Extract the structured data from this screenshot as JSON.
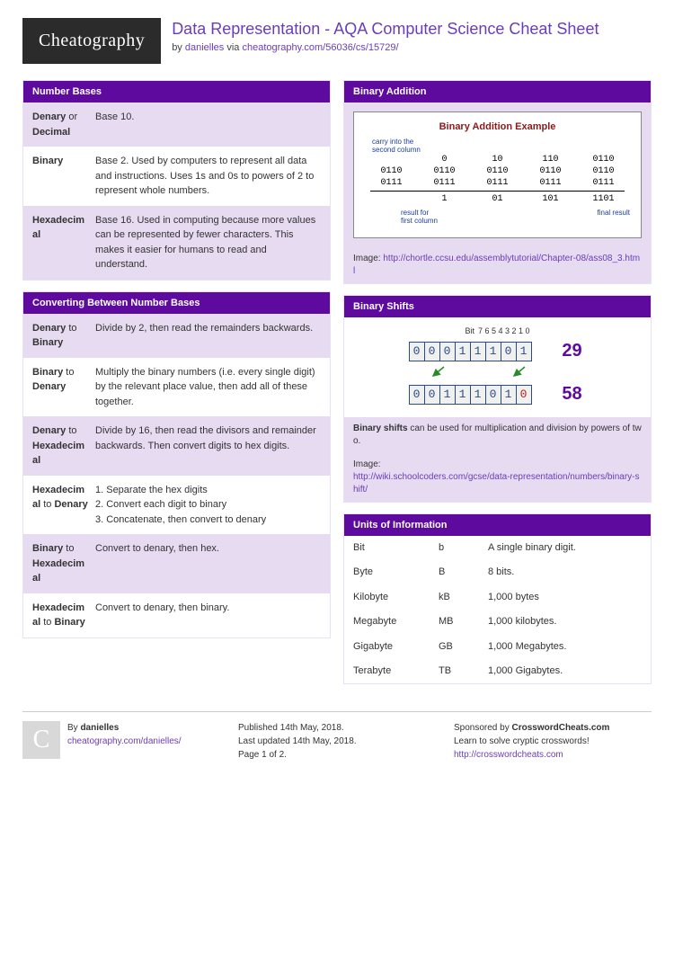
{
  "colors": {
    "header_bg": "#5e0a9e",
    "alt_bg": "#e7dbf2",
    "link": "#6a3db8",
    "logo_bg": "#2b2b2b"
  },
  "header": {
    "logo_text": "Cheatography",
    "title": "Data Representation - AQA Computer Science Cheat Sheet",
    "by": "by ",
    "author": "danielles",
    "via": " via ",
    "source_url": "cheatography.com/56036/cs/15729/"
  },
  "left": {
    "number_bases": {
      "title": "Number Bases",
      "rows": [
        {
          "term": "<b>Denary</b> or <b>Decimal</b>",
          "def": "Base 10."
        },
        {
          "term": "<b>Binary</b>",
          "def": "Base 2. Used by computers to represent all data and instructions. Uses 1s and 0s to powers of 2 to represent whole numbers."
        },
        {
          "term": "<b>Hexadecimal</b>",
          "def": "Base 16. Used in computing because more values can be represented by fewer characters. This makes it easier for humans to read and understand."
        }
      ]
    },
    "converting": {
      "title": "Converting Between Number Bases",
      "rows": [
        {
          "term": "<b>Denary</b> to <b>Binary</b>",
          "def": "Divide by 2, then read the remainders backwards."
        },
        {
          "term": "<b>Binary</b> to <b>Denary</b>",
          "def": "Multiply the binary numbers (i.e. every single digit) by the relevant place value, then add all of these together."
        },
        {
          "term": "<b>Denary</b> to <b>Hexadecimal</b>",
          "def": "Divide by 16, then read the divisors and remainder backwards. Then convert digits to hex digits."
        },
        {
          "term": "<b>Hexadecimal</b> to <b>Denary</b>",
          "def": "1. Separate the hex digits\n2. Convert each digit to binary\n3. Concatenate, then convert to denary"
        },
        {
          "term": "<b>Binary</b> to <b>Hexadecimal</b>",
          "def": "Convert to denary, then hex."
        },
        {
          "term": "<b>Hexadecimal</b> to <b>Binary</b>",
          "def": "Convert to denary, then binary."
        }
      ]
    }
  },
  "right": {
    "binary_addition": {
      "title": "Binary Addition",
      "diagram": {
        "title": "Binary Addition Example",
        "note_top": "carry into the\nsecond column",
        "rows_top": [
          [
            "",
            "0",
            "10",
            "110",
            "0110"
          ],
          [
            "0110",
            "0110",
            "0110",
            "0110",
            "0110"
          ],
          [
            "0111",
            "0111",
            "0111",
            "0111",
            "0111"
          ]
        ],
        "rows_bottom": [
          [
            "",
            "1",
            "01",
            "101",
            "1101"
          ]
        ],
        "note_bottom_left": "result for\nfirst column",
        "note_bottom_right": "final result"
      },
      "caption_label": "Image: ",
      "caption_url": "http://chortle.ccsu.edu/assemblytutorial/Chapter-08/ass08_3.html"
    },
    "binary_shifts": {
      "title": "Binary Shifts",
      "diagram": {
        "bit_labels": [
          "7",
          "6",
          "5",
          "4",
          "3",
          "2",
          "1",
          "0"
        ],
        "row1": {
          "bits": [
            "0",
            "0",
            "0",
            "1",
            "1",
            "1",
            "0",
            "1"
          ],
          "hl": [],
          "value": "29"
        },
        "row2": {
          "bits": [
            "0",
            "0",
            "1",
            "1",
            "1",
            "0",
            "1",
            "0"
          ],
          "hl": [
            7
          ],
          "value": "58"
        }
      },
      "note": "<b>Binary shifts</b> can be used for multiplication and division by powers of two.",
      "caption_label": "Image:",
      "caption_url": "http://wiki.schoolcoders.com/gcse/data-representation/numbers/binary-shift/"
    },
    "units": {
      "title": "Units of Information",
      "rows": [
        {
          "name": "Bit",
          "sym": "b",
          "desc": "A single binary digit."
        },
        {
          "name": "Byte",
          "sym": "B",
          "desc": "8 bits."
        },
        {
          "name": "Kilobyte",
          "sym": "kB",
          "desc": "1,000 bytes"
        },
        {
          "name": "Megabyte",
          "sym": "MB",
          "desc": "1,000 kilobytes."
        },
        {
          "name": "Gigabyte",
          "sym": "GB",
          "desc": "1,000 Megabytes."
        },
        {
          "name": "Terabyte",
          "sym": "TB",
          "desc": "1,000 Gigabytes."
        }
      ]
    }
  },
  "footer": {
    "col1": {
      "by_label": "By ",
      "author": "danielles",
      "author_url": "cheatography.com/danielles/"
    },
    "col2": {
      "published": "Published 14th May, 2018.",
      "updated": "Last updated 14th May, 2018.",
      "page": "Page 1 of 2."
    },
    "col3": {
      "sponsored": "Sponsored by ",
      "sponsor_name": "CrosswordCheats.com",
      "tagline": "Learn to solve cryptic crosswords!",
      "sponsor_url": "http://crosswordcheats.com"
    }
  }
}
